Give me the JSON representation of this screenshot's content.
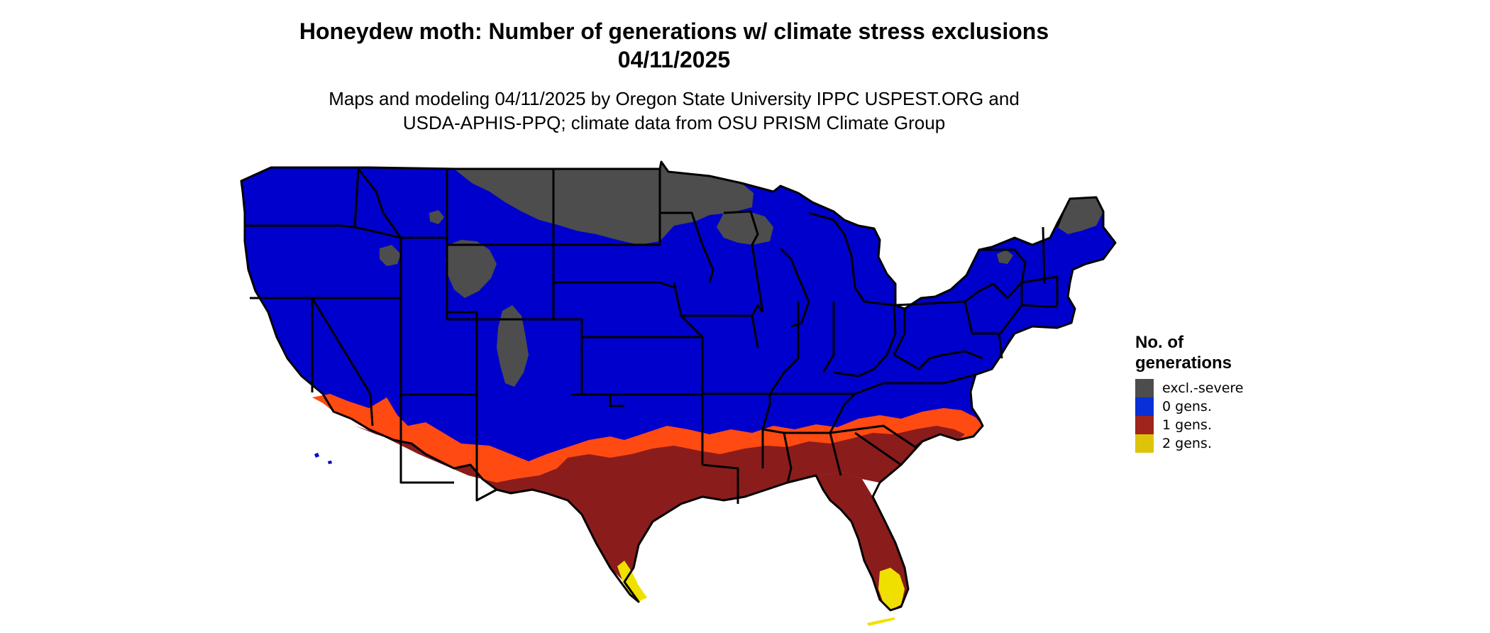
{
  "title_line1": "Honeydew moth: Number of generations w/ climate stress exclusions",
  "title_line2": "04/11/2025",
  "subtitle_line1": "Maps and modeling 04/11/2025 by Oregon State University IPPC USPEST.ORG and",
  "subtitle_line2": "USDA-APHIS-PPQ; climate data from OSU PRISM Climate Group",
  "legend": {
    "title_line1": "No. of",
    "title_line2": "generations",
    "items": [
      {
        "label": "excl.-severe",
        "color": "#4d4d4d"
      },
      {
        "label": "0 gens.",
        "color": "#0a2fd6"
      },
      {
        "label": "1 gens.",
        "color": "#a0231c"
      },
      {
        "label": "2 gens.",
        "color": "#ddc40a"
      }
    ]
  },
  "colors": {
    "excluded": "#4d4d4d",
    "zero": "#0000cc",
    "one": "#8b1c1c",
    "one_edge": "#ff4a12",
    "two": "#f0e000",
    "border": "#000000"
  }
}
